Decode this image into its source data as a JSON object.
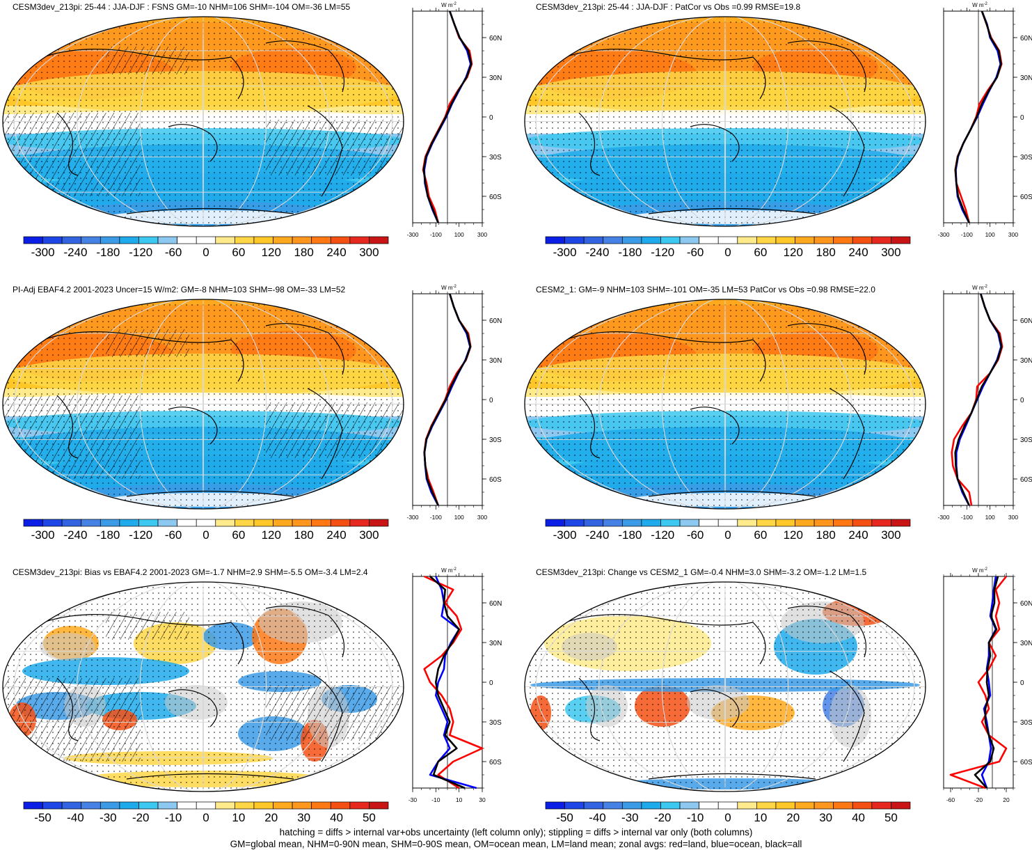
{
  "colors": {
    "scale": [
      "#0a1ee6",
      "#1e46e6",
      "#3264e1",
      "#4682e6",
      "#3c9be6",
      "#1eaaeb",
      "#3cc8f0",
      "#8cc8f0",
      "#ffffff",
      "#ffffff",
      "#ffeb8c",
      "#ffd746",
      "#ffc828",
      "#ffaa1e",
      "#ff961e",
      "#ff7814",
      "#f55014",
      "#e6281e",
      "#c81414"
    ],
    "land": "#c8c8c8",
    "zonal_land": "#ff0000",
    "zonal_ocean": "#0000ff",
    "zonal_all": "#000000"
  },
  "panels": [
    {
      "id": "p1",
      "title": "CESM3dev_213pi: 25-44 : JJA-DJF : FSNS GM=-10 NHM=106 SHM=-104 OM=-36 LM=55",
      "colorbar_labels": [
        "-300",
        "-240",
        "-180",
        "-120",
        "-60",
        "0",
        "60",
        "120",
        "180",
        "240",
        "300"
      ],
      "zonal_unit": "W m",
      "zonal_unit_exp": "-2",
      "zonal_xticks": [
        "-300",
        "-100",
        "100",
        "300"
      ],
      "zonal_yticks": [
        "60N",
        "30N",
        "0",
        "30S",
        "60S"
      ]
    },
    {
      "id": "p2",
      "title": "CESM3dev_213pi: 25-44 : JJA-DJF : PatCor vs Obs =0.99 RMSE=19.8",
      "colorbar_labels": [
        "-300",
        "-240",
        "-180",
        "-120",
        "-60",
        "0",
        "60",
        "120",
        "180",
        "240",
        "300"
      ],
      "zonal_unit": "W m",
      "zonal_unit_exp": "-2",
      "zonal_xticks": [
        "-300",
        "-100",
        "100",
        "300"
      ],
      "zonal_yticks": [
        "60N",
        "30N",
        "0",
        "30S",
        "60S"
      ]
    },
    {
      "id": "p3",
      "title": "PI-Adj EBAF4.2 2001-2023 Uncer=15 W/m2: GM=-8 NHM=103 SHM=-98 OM=-33 LM=52",
      "colorbar_labels": [
        "-300",
        "-240",
        "-180",
        "-120",
        "-60",
        "0",
        "60",
        "120",
        "180",
        "240",
        "300"
      ],
      "zonal_unit": "W m",
      "zonal_unit_exp": "-2",
      "zonal_xticks": [
        "-300",
        "-100",
        "100",
        "300"
      ],
      "zonal_yticks": [
        "60N",
        "30N",
        "0",
        "30S",
        "60S"
      ]
    },
    {
      "id": "p4",
      "title": "CESM2_1: GM=-9 NHM=103 SHM=-101 OM=-35 LM=53 PatCor vs Obs =0.98 RMSE=22.0",
      "colorbar_labels": [
        "-300",
        "-240",
        "-180",
        "-120",
        "-60",
        "0",
        "60",
        "120",
        "180",
        "240",
        "300"
      ],
      "zonal_unit": "W m",
      "zonal_unit_exp": "-2",
      "zonal_xticks": [
        "-300",
        "-100",
        "100",
        "300"
      ],
      "zonal_yticks": [
        "60N",
        "30N",
        "0",
        "30S",
        "60S"
      ]
    },
    {
      "id": "p5",
      "title": "CESM3dev_213pi: Bias vs EBAF4.2 2001-2023 GM=-1.7 NHM=2.9 SHM=-5.5 OM=-3.4 LM=2.4",
      "colorbar_labels": [
        "-50",
        "-40",
        "-30",
        "-20",
        "-10",
        "0",
        "10",
        "20",
        "30",
        "40",
        "50"
      ],
      "zonal_unit": "W m",
      "zonal_unit_exp": "-2",
      "zonal_xticks": [
        "-30",
        "-10",
        "10",
        "30"
      ],
      "zonal_yticks": [
        "60N",
        "30N",
        "0",
        "30S",
        "60S"
      ]
    },
    {
      "id": "p6",
      "title": "CESM3dev_213pi: Change vs CESM2_1 GM=-0.4 NHM=3.0 SHM=-3.2 OM=-1.2 LM=1.5",
      "colorbar_labels": [
        "-50",
        "-40",
        "-30",
        "-20",
        "-10",
        "0",
        "10",
        "20",
        "30",
        "40",
        "50"
      ],
      "zonal_unit": "W m",
      "zonal_unit_exp": "-2",
      "zonal_xticks": [
        "-60",
        "-20",
        "20"
      ],
      "zonal_yticks": [
        "60N",
        "30N",
        "0",
        "30S",
        "60S"
      ]
    }
  ],
  "chart_data": [
    {
      "type": "heatmap",
      "title": "CESM3dev_213pi: 25-44 : JJA-DJF : FSNS GM=-10 NHM=106 SHM=-104 OM=-36 LM=55",
      "colorbar_range": [
        -300,
        300
      ],
      "zonal_average": {
        "type": "line",
        "xlim": [
          -300,
          300
        ],
        "lat": [
          80,
          70,
          60,
          50,
          40,
          30,
          20,
          10,
          0,
          -10,
          -20,
          -30,
          -40,
          -50,
          -60,
          -70,
          -80
        ],
        "series": [
          {
            "name": "red=land",
            "values": [
              20,
              60,
              100,
              190,
              210,
              170,
              90,
              20,
              -20,
              -80,
              -140,
              -190,
              -210,
              -180,
              -160,
              -110,
              -80
            ]
          },
          {
            "name": "blue=ocean",
            "values": [
              20,
              60,
              105,
              170,
              200,
              160,
              100,
              40,
              -10,
              -70,
              -130,
              -180,
              -200,
              -195,
              -170,
              -130,
              -80
            ]
          },
          {
            "name": "black=all",
            "values": [
              20,
              60,
              105,
              180,
              205,
              165,
              95,
              35,
              -15,
              -75,
              -135,
              -185,
              -205,
              -190,
              -170,
              -125,
              -80
            ]
          }
        ]
      }
    },
    {
      "type": "heatmap",
      "title": "CESM3dev_213pi: 25-44 : JJA-DJF : PatCor vs Obs =0.99 RMSE=19.8",
      "colorbar_range": [
        -300,
        300
      ],
      "zonal_average": {
        "type": "line",
        "xlim": [
          -300,
          300
        ],
        "lat": [
          80,
          70,
          60,
          50,
          40,
          30,
          20,
          10,
          0,
          -10,
          -20,
          -30,
          -40,
          -50,
          -60,
          -70,
          -80
        ],
        "series": [
          {
            "name": "red=land",
            "values": [
              30,
              70,
              110,
              180,
              200,
              160,
              80,
              10,
              -20,
              -70,
              -130,
              -180,
              -200,
              -190,
              -150,
              -110,
              -80
            ]
          },
          {
            "name": "blue=ocean",
            "values": [
              30,
              75,
              100,
              165,
              190,
              155,
              95,
              40,
              -10,
              -70,
              -130,
              -175,
              -195,
              -190,
              -180,
              -140,
              -80
            ]
          },
          {
            "name": "black=all",
            "values": [
              30,
              72,
              105,
              175,
              195,
              160,
              90,
              30,
              -15,
              -70,
              -130,
              -178,
              -198,
              -190,
              -175,
              -130,
              -80
            ]
          }
        ]
      }
    },
    {
      "type": "heatmap",
      "title": "PI-Adj EBAF4.2 2001-2023 Uncer=15 W/m2: GM=-8 NHM=103 SHM=-98 OM=-33 LM=52",
      "colorbar_range": [
        -300,
        300
      ],
      "zonal_average": {
        "type": "line",
        "xlim": [
          -300,
          300
        ],
        "lat": [
          80,
          70,
          60,
          50,
          40,
          30,
          20,
          10,
          0,
          -10,
          -20,
          -30,
          -40,
          -50,
          -60,
          -70,
          -80
        ],
        "series": [
          {
            "name": "red=land",
            "values": [
              20,
              55,
              100,
              180,
              200,
              160,
              80,
              20,
              -20,
              -80,
              -140,
              -185,
              -200,
              -190,
              -165,
              -120,
              -80
            ]
          },
          {
            "name": "blue=ocean",
            "values": [
              20,
              55,
              100,
              165,
              195,
              155,
              95,
              40,
              -10,
              -70,
              -130,
              -180,
              -198,
              -192,
              -180,
              -140,
              -80
            ]
          },
          {
            "name": "black=all",
            "values": [
              20,
              55,
              100,
              172,
              198,
              158,
              90,
              32,
              -15,
              -75,
              -135,
              -182,
              -199,
              -191,
              -175,
              -130,
              -80
            ]
          }
        ]
      }
    },
    {
      "type": "heatmap",
      "title": "CESM2_1: GM=-9 NHM=103 SHM=-101 OM=-35 LM=53 PatCor vs Obs =0.98 RMSE=22.0",
      "colorbar_range": [
        -300,
        300
      ],
      "zonal_average": {
        "type": "line",
        "xlim": [
          -300,
          300
        ],
        "lat": [
          80,
          70,
          60,
          50,
          40,
          30,
          20,
          10,
          0,
          -10,
          -20,
          -30,
          -40,
          -50,
          -60,
          -70,
          -80
        ],
        "series": [
          {
            "name": "red=land",
            "values": [
              20,
              55,
              100,
              185,
              205,
              170,
              100,
              -10,
              -20,
              -60,
              -140,
              -210,
              -230,
              -220,
              -180,
              -80,
              -60
            ]
          },
          {
            "name": "blue=ocean",
            "values": [
              20,
              55,
              100,
              170,
              195,
              160,
              100,
              40,
              -10,
              -60,
              -110,
              -160,
              -190,
              -190,
              -180,
              -140,
              -80
            ]
          },
          {
            "name": "black=all",
            "values": [
              20,
              55,
              100,
              175,
              200,
              165,
              100,
              30,
              -15,
              -60,
              -120,
              -170,
              -200,
              -195,
              -180,
              -130,
              -80
            ]
          }
        ]
      }
    },
    {
      "type": "heatmap",
      "title": "CESM3dev_213pi: Bias vs EBAF4.2 2001-2023 GM=-1.7 NHM=2.9 SHM=-5.5 OM=-3.4 LM=2.4",
      "colorbar_range": [
        -50,
        50
      ],
      "zonal_average": {
        "type": "line",
        "xlim": [
          -30,
          30
        ],
        "lat": [
          80,
          70,
          60,
          50,
          40,
          30,
          20,
          10,
          0,
          -10,
          -20,
          -30,
          -40,
          -50,
          -60,
          -70,
          -80
        ],
        "series": [
          {
            "name": "red=land",
            "values": [
              -20,
              5,
              -2,
              8,
              12,
              5,
              -5,
              -20,
              -15,
              -5,
              2,
              5,
              2,
              35,
              5,
              -8,
              10
            ]
          },
          {
            "name": "blue=ocean",
            "values": [
              -10,
              -5,
              -3,
              -5,
              10,
              3,
              -2,
              -3,
              -8,
              -10,
              -5,
              0,
              -3,
              2,
              -8,
              -15,
              25
            ]
          },
          {
            "name": "black=all",
            "values": [
              -15,
              -2,
              -3,
              0,
              10,
              4,
              -3,
              -8,
              -10,
              -8,
              -3,
              2,
              -2,
              8,
              -8,
              -12,
              15
            ]
          }
        ]
      }
    },
    {
      "type": "heatmap",
      "title": "CESM3dev_213pi: Change vs CESM2_1 GM=-0.4 NHM=3.0 SHM=-3.2 OM=-1.2 LM=1.5",
      "colorbar_range": [
        -50,
        50
      ],
      "zonal_average": {
        "type": "line",
        "xlim": [
          -70,
          30
        ],
        "lat": [
          80,
          70,
          60,
          50,
          40,
          30,
          20,
          10,
          0,
          -10,
          -20,
          -30,
          -40,
          -50,
          -60,
          -70,
          -80
        ],
        "series": [
          {
            "name": "red=land",
            "values": [
              20,
              5,
              10,
              5,
              10,
              -5,
              5,
              -5,
              -20,
              -10,
              -5,
              -15,
              -5,
              20,
              10,
              -60,
              -10
            ]
          },
          {
            "name": "blue=ocean",
            "values": [
              5,
              2,
              0,
              -3,
              5,
              -5,
              -5,
              -8,
              -5,
              -3,
              -12,
              -8,
              -5,
              -2,
              -5,
              -15,
              -8
            ]
          },
          {
            "name": "black=all",
            "values": [
              8,
              3,
              3,
              -2,
              6,
              -5,
              -3,
              -7,
              -8,
              -5,
              -10,
              -10,
              -5,
              2,
              -3,
              -25,
              -8
            ]
          }
        ]
      }
    }
  ],
  "footer": {
    "line1": "hatching = diffs > internal var+obs uncertainty (left column only); stippling = diffs > internal var only (both columns)",
    "line2": "GM=global mean, NHM=0-90N mean, SHM=0-90S mean, OM=ocean mean, LM=land mean; zonal avgs: red=land, blue=ocean, black=all"
  }
}
